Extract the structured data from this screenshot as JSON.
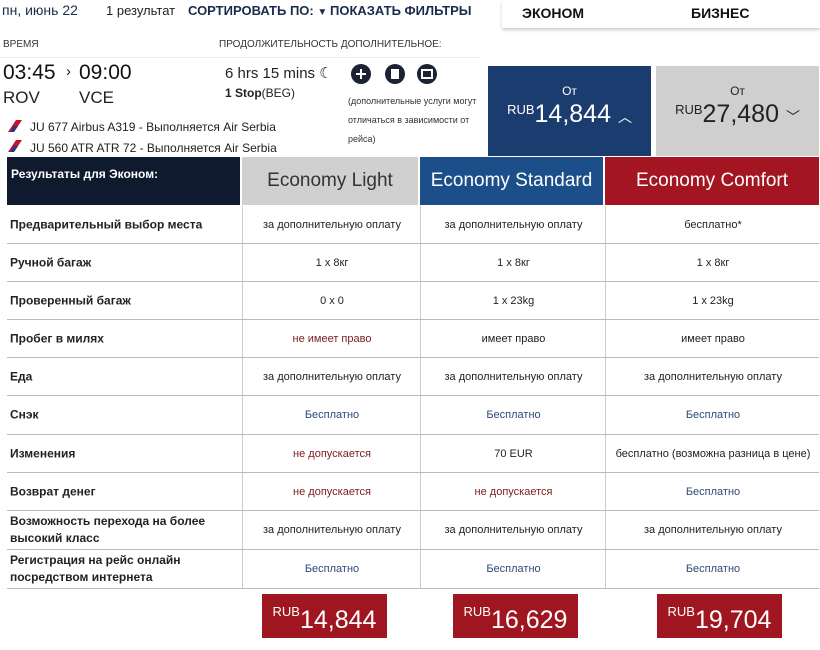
{
  "header": {
    "date": "пн, июнь 22",
    "results": "1 результат",
    "sort": "СОРТИРОВАТЬ ПО:",
    "filters": "ПОКАЗАТЬ ФИЛЬТРЫ"
  },
  "tabs": [
    "ЭКОНОМ",
    "БИЗНЕС"
  ],
  "flight": {
    "time_label": "ВРЕМЯ",
    "duration_label": "ПРОДОЛЖИТЕЛЬНОСТЬ ДОПОЛНИТЕЛЬНОЕ:",
    "depart": "03:45",
    "arrive": "09:00",
    "from": "ROV",
    "to": "VCE",
    "duration": "6 hrs 15 mins",
    "stops": "1 Stop",
    "via": "(BEG)",
    "note": "(дополнительные услуги могут отличаться в зависимости от рейса)",
    "segments": [
      "JU 677 Airbus A319 - Выполняется Air Serbia",
      "JU 560 ATR ATR 72 - Выполняется Air Serbia"
    ]
  },
  "fares": [
    {
      "label": "От",
      "currency": "RUB",
      "amount": "14,844"
    },
    {
      "label": "От",
      "currency": "RUB",
      "amount": "27,480"
    }
  ],
  "table": {
    "title": "Результаты для Эконом:",
    "columns": [
      "Economy Light",
      "Economy Standard",
      "Economy Comfort"
    ],
    "rows": [
      {
        "label": "Предварительный выбор места",
        "cells": [
          "за дополнительную оплату",
          "за дополнительную оплату",
          "бесплатно*"
        ]
      },
      {
        "label": "Ручной багаж",
        "cells": [
          "1 х 8кг",
          "1 х 8кг",
          "1 х 8кг"
        ]
      },
      {
        "label": "Проверенный багаж",
        "cells": [
          "0 x 0",
          "1 x 23kg",
          "1 x 23kg"
        ]
      },
      {
        "label": "Пробег в милях",
        "cells": [
          "не имеет право",
          "имеет право",
          "имеет право"
        ]
      },
      {
        "label": "Еда",
        "cells": [
          "за дополнительную оплату",
          "за дополнительную оплату",
          "за дополнительную оплату"
        ]
      },
      {
        "label": "Снэк",
        "cells": [
          "Бесплатно",
          "Бесплатно",
          "Бесплатно"
        ]
      },
      {
        "label": "Изменения",
        "cells": [
          "не допускается",
          "70 EUR",
          "бесплатно (возможна разница в цене)"
        ]
      },
      {
        "label": "Возврат денег",
        "cells": [
          "не допускается",
          "не допускается",
          "Бесплатно"
        ]
      },
      {
        "label": "Возможность перехода на более высокий класс",
        "cells": [
          "за дополнительную оплату",
          "за дополнительную оплату",
          "за дополнительную оплату"
        ]
      },
      {
        "label": "Регистрация на рейс онлайн посредством интернета",
        "cells": [
          "Бесплатно",
          "Бесплатно",
          "Бесплатно"
        ]
      }
    ]
  },
  "prices": [
    {
      "currency": "RUB",
      "amount": "14,844"
    },
    {
      "currency": "RUB",
      "amount": "16,629"
    },
    {
      "currency": "RUB",
      "amount": "19,704"
    }
  ]
}
